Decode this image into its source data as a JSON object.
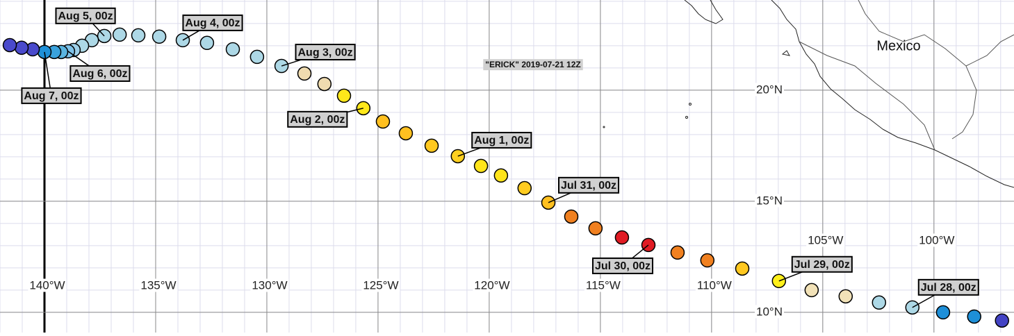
{
  "map": {
    "title": "\"ERICK\" 2019-07-21 12Z",
    "place_label": "Mexico",
    "xlim": [
      -142,
      -96.4
    ],
    "ylim": [
      9.09,
      24.06
    ],
    "xticks": [
      {
        "value": -140,
        "label": "140°W"
      },
      {
        "value": -135,
        "label": "135°W"
      },
      {
        "value": -130,
        "label": "130°W"
      },
      {
        "value": -125,
        "label": "125°W"
      },
      {
        "value": -120,
        "label": "120°W"
      },
      {
        "value": -115,
        "label": "115°W"
      },
      {
        "value": -110,
        "label": "110°W"
      },
      {
        "value": -105,
        "label": "105°W"
      },
      {
        "value": -100,
        "label": "100°W"
      }
    ],
    "yticks": [
      {
        "value": 10,
        "label": "10°N"
      },
      {
        "value": 15,
        "label": "15°N"
      },
      {
        "value": 20,
        "label": "20°N"
      }
    ],
    "track": [
      {
        "lon": -96.94,
        "lat": 9.63,
        "color": "#4343c4"
      },
      {
        "lon": -98.19,
        "lat": 9.81,
        "color": "#1e8fd8"
      },
      {
        "lon": -99.59,
        "lat": 10.0,
        "color": "#1e8fd8"
      },
      {
        "lon": -100.97,
        "lat": 10.22,
        "color": "#add8e6",
        "label": "Jul 28, 00z"
      },
      {
        "lon": -102.47,
        "lat": 10.44,
        "color": "#add8e6"
      },
      {
        "lon": -103.97,
        "lat": 10.72,
        "color": "#f2e2b8"
      },
      {
        "lon": -105.5,
        "lat": 11.0,
        "color": "#f2e2b8"
      },
      {
        "lon": -106.97,
        "lat": 11.41,
        "color": "#fff01a",
        "label": "Jul 29, 00z"
      },
      {
        "lon": -108.62,
        "lat": 11.97,
        "color": "#ffc820"
      },
      {
        "lon": -110.19,
        "lat": 12.34,
        "color": "#f08020"
      },
      {
        "lon": -111.53,
        "lat": 12.69,
        "color": "#f08020"
      },
      {
        "lon": -112.84,
        "lat": 13.03,
        "color": "#e01b24",
        "label": "Jul 30, 00z"
      },
      {
        "lon": -114.03,
        "lat": 13.37,
        "color": "#e01b24"
      },
      {
        "lon": -115.22,
        "lat": 13.78,
        "color": "#f08020"
      },
      {
        "lon": -116.31,
        "lat": 14.31,
        "color": "#f08020"
      },
      {
        "lon": -117.34,
        "lat": 14.94,
        "color": "#ffc020",
        "label": "Jul 31, 00z"
      },
      {
        "lon": -118.41,
        "lat": 15.59,
        "color": "#ffcc20"
      },
      {
        "lon": -119.47,
        "lat": 16.16,
        "color": "#ffe41a"
      },
      {
        "lon": -120.37,
        "lat": 16.59,
        "color": "#ffe41a"
      },
      {
        "lon": -121.41,
        "lat": 17.03,
        "color": "#ffd020",
        "label": "Aug 1, 00z"
      },
      {
        "lon": -122.59,
        "lat": 17.5,
        "color": "#ffc820"
      },
      {
        "lon": -123.75,
        "lat": 18.06,
        "color": "#ffc020"
      },
      {
        "lon": -124.78,
        "lat": 18.59,
        "color": "#ffc020"
      },
      {
        "lon": -125.66,
        "lat": 19.19,
        "color": "#ffe81a",
        "label": "Aug 2, 00z"
      },
      {
        "lon": -126.53,
        "lat": 19.75,
        "color": "#ffe81a"
      },
      {
        "lon": -127.41,
        "lat": 20.28,
        "color": "#f0dcb0"
      },
      {
        "lon": -128.31,
        "lat": 20.75,
        "color": "#f0dcb0"
      },
      {
        "lon": -129.34,
        "lat": 21.09,
        "color": "#add8e6",
        "label": "Aug 3, 00z"
      },
      {
        "lon": -130.44,
        "lat": 21.5,
        "color": "#add8e6"
      },
      {
        "lon": -131.53,
        "lat": 21.84,
        "color": "#add8e6"
      },
      {
        "lon": -132.69,
        "lat": 22.13,
        "color": "#add8e6"
      },
      {
        "lon": -133.78,
        "lat": 22.25,
        "color": "#add8e6",
        "label": "Aug 4, 00z"
      },
      {
        "lon": -134.84,
        "lat": 22.41,
        "color": "#add8e6"
      },
      {
        "lon": -135.78,
        "lat": 22.47,
        "color": "#add8e6"
      },
      {
        "lon": -136.62,
        "lat": 22.5,
        "color": "#add8e6"
      },
      {
        "lon": -137.31,
        "lat": 22.44,
        "color": "#add8e6",
        "label": "Aug 5, 00z"
      },
      {
        "lon": -137.87,
        "lat": 22.25,
        "color": "#add8e6"
      },
      {
        "lon": -138.31,
        "lat": 22.0,
        "color": "#add8e6"
      },
      {
        "lon": -138.69,
        "lat": 21.81,
        "color": "#9ccfe8"
      },
      {
        "lon": -138.94,
        "lat": 21.75,
        "color": "#7fc2e8",
        "label": "Aug 6, 00z"
      },
      {
        "lon": -139.25,
        "lat": 21.72,
        "color": "#5ab4e0"
      },
      {
        "lon": -139.56,
        "lat": 21.72,
        "color": "#3aa2dc"
      },
      {
        "lon": -140.0,
        "lat": 21.72,
        "color": "#1e90d8",
        "label": "Aug 7, 00z"
      },
      {
        "lon": -140.53,
        "lat": 21.84,
        "color": "#4a4acc"
      },
      {
        "lon": -141.03,
        "lat": 21.91,
        "color": "#4a4acc"
      },
      {
        "lon": -141.56,
        "lat": 22.03,
        "color": "#4a4acc"
      }
    ]
  }
}
